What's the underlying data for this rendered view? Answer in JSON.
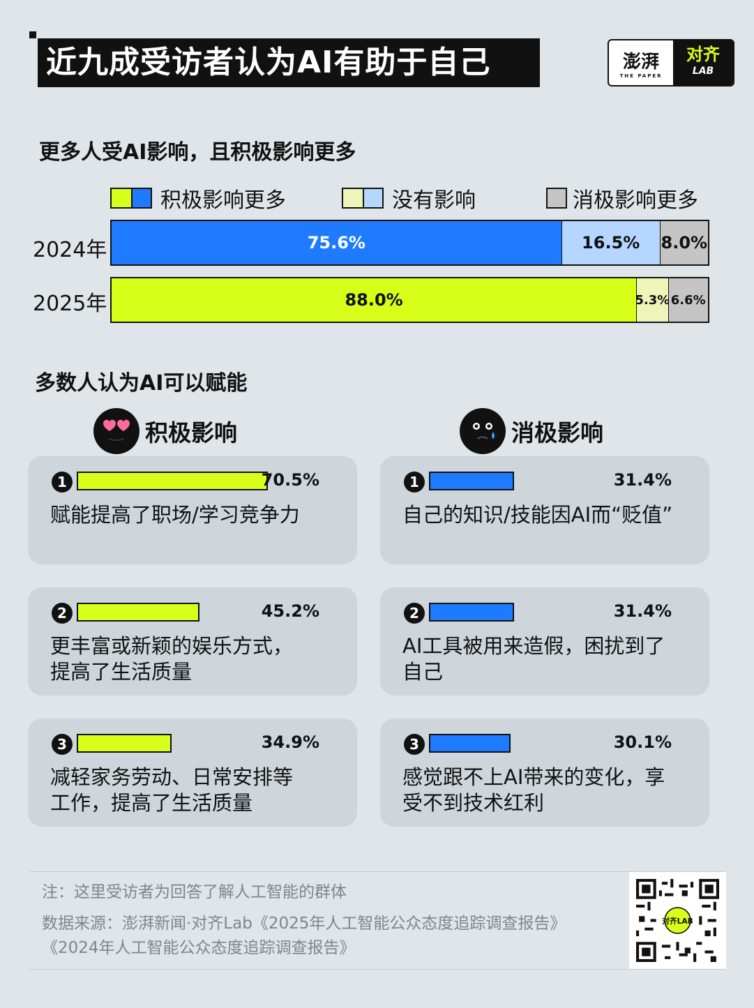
{
  "title": "近九成受访者认为AI有助于自己",
  "logo": {
    "left_text": "澎湃",
    "left_sub": "THE PAPER",
    "right_text": "对齐",
    "right_sub": "LAB"
  },
  "section1_title": "更多人受AI影响，且积极影响更多",
  "legend": [
    {
      "label": "积极影响更多",
      "colors": [
        "#d8ff1a",
        "#1e7bff"
      ]
    },
    {
      "label": "没有影响",
      "colors": [
        "#eef5b8",
        "#b5d6ff"
      ]
    },
    {
      "label": "消极影响更多",
      "colors": [
        "#c5c5c5"
      ]
    }
  ],
  "chart_data": [
    {
      "type": "bar",
      "orientation": "horizontal",
      "stacked": true,
      "categories": [
        "2024年",
        "2025年"
      ],
      "series": [
        {
          "name": "积极影响更多",
          "values": [
            75.6,
            88.0
          ],
          "labels": [
            "75.6%",
            "88.0%"
          ],
          "colors": [
            "#1e7bff",
            "#d8ff1a"
          ]
        },
        {
          "name": "没有影响",
          "values": [
            16.5,
            5.3
          ],
          "labels": [
            "16.5%",
            "5.3%"
          ],
          "colors": [
            "#b5d6ff",
            "#eef5b8"
          ]
        },
        {
          "name": "消极影响更多",
          "values": [
            8.0,
            6.6
          ],
          "labels": [
            "8.0%",
            "6.6%"
          ],
          "colors": [
            "#c5c5c5",
            "#c5c5c5"
          ]
        }
      ],
      "xlim": [
        0,
        100
      ]
    },
    {
      "type": "bar",
      "title": "积极影响",
      "categories": [
        "赋能提高了职场/学习竞争力",
        "更丰富或新颖的娱乐方式，提高了生活质量",
        "减轻家务劳动、日常安排等工作，提高了生活质量"
      ],
      "values": [
        70.5,
        45.2,
        34.9
      ],
      "color": "#d8ff1a"
    },
    {
      "type": "bar",
      "title": "消极影响",
      "categories": [
        "自己的知识/技能因AI而“贬值”",
        "AI工具被用来造假，困扰到了自己",
        "感觉跟不上AI带来的变化，享受不到技术红利"
      ],
      "values": [
        31.4,
        31.4,
        30.1
      ],
      "color": "#1e7bff"
    }
  ],
  "section2_title": "多数人认为AI可以赋能",
  "positive": {
    "heading": "积极影响",
    "items": [
      {
        "rank": "1",
        "pct": "70.5%",
        "text": "赋能提高了职场/学习竞争力"
      },
      {
        "rank": "2",
        "pct": "45.2%",
        "text": "更丰富或新颖的娱乐方式，\n提高了生活质量"
      },
      {
        "rank": "3",
        "pct": "34.9%",
        "text": "减轻家务劳动、日常安排等\n工作，提高了生活质量"
      }
    ]
  },
  "negative": {
    "heading": "消极影响",
    "items": [
      {
        "rank": "1",
        "pct": "31.4%",
        "text": "自己的知识/技能因AI而“贬值”"
      },
      {
        "rank": "2",
        "pct": "31.4%",
        "text": "AI工具被用来造假，困扰到了\n自己"
      },
      {
        "rank": "3",
        "pct": "30.1%",
        "text": "感觉跟不上AI带来的变化，享\n受不到技术红利"
      }
    ]
  },
  "note": "注：这里受访者为回答了解人工智能的群体",
  "source": "数据来源：澎湃新闻·对齐Lab《2025年人工智能公众态度追踪调查报告》《2024年人工智能公众态度追踪调查报告》",
  "qr_label": "对齐LAB"
}
